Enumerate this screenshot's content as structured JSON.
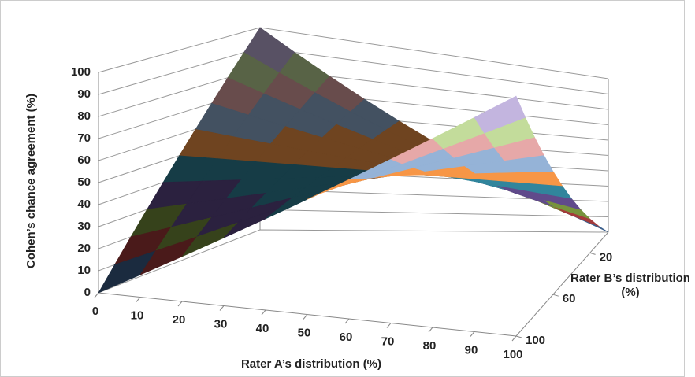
{
  "chart_data": {
    "type": "surface",
    "z_label": "Cohen’s chance agreement (%)",
    "x_label": "Rater A’s distribution (%)",
    "y_label": "Rater B’s distribution (%)",
    "x": [
      0,
      10,
      20,
      30,
      40,
      50,
      60,
      70,
      80,
      90,
      100
    ],
    "y": [
      0,
      10,
      20,
      30,
      40,
      50,
      60,
      70,
      80,
      90,
      100
    ],
    "z": [
      [
        100,
        90,
        80,
        70,
        60,
        50,
        40,
        30,
        20,
        10,
        0
      ],
      [
        90,
        82,
        74,
        66,
        58,
        50,
        42,
        34,
        26,
        18,
        10
      ],
      [
        80,
        74,
        68,
        62,
        56,
        50,
        44,
        38,
        32,
        26,
        20
      ],
      [
        70,
        66,
        62,
        58,
        54,
        50,
        46,
        42,
        38,
        34,
        30
      ],
      [
        60,
        58,
        56,
        54,
        52,
        50,
        48,
        46,
        44,
        42,
        40
      ],
      [
        50,
        50,
        50,
        50,
        50,
        50,
        50,
        50,
        50,
        50,
        50
      ],
      [
        40,
        42,
        44,
        46,
        48,
        50,
        52,
        54,
        56,
        58,
        60
      ],
      [
        30,
        34,
        38,
        42,
        46,
        50,
        54,
        58,
        62,
        66,
        70
      ],
      [
        20,
        26,
        32,
        38,
        44,
        50,
        56,
        62,
        68,
        74,
        80
      ],
      [
        10,
        18,
        26,
        34,
        42,
        50,
        58,
        66,
        74,
        82,
        90
      ],
      [
        0,
        10,
        20,
        30,
        40,
        50,
        60,
        70,
        80,
        90,
        100
      ]
    ],
    "xlim": [
      0,
      100
    ],
    "ylim": [
      0,
      100
    ],
    "zlim": [
      0,
      100
    ],
    "xticks": [
      0,
      10,
      20,
      30,
      40,
      50,
      60,
      70,
      80,
      90,
      100
    ],
    "yticks": [
      20,
      60,
      100
    ],
    "zticks": [
      0,
      10,
      20,
      30,
      40,
      50,
      60,
      70,
      80,
      90,
      100
    ],
    "grid": true,
    "band_colors": [
      "#3b5f8c",
      "#a53a3a",
      "#77933c",
      "#604a8b",
      "#31859c",
      "#f79646",
      "#95b3d7",
      "#e6a8a8",
      "#c3dc9b",
      "#c3b5df"
    ]
  }
}
